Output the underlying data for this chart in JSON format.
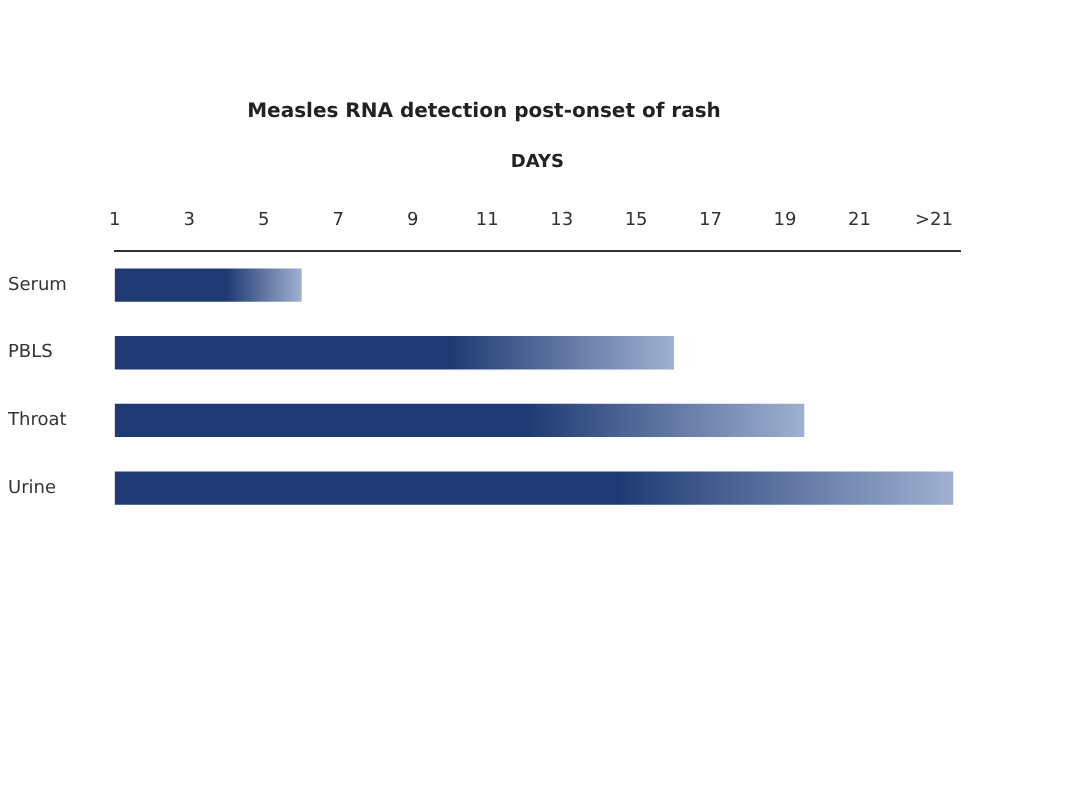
{
  "chart_data": {
    "type": "bar",
    "orientation": "horizontal",
    "title": "Measles RNA detection post-onset of rash",
    "xlabel": "DAYS",
    "categories": [
      "Serum",
      "PBLS",
      "Throat",
      "Urine"
    ],
    "values": [
      6,
      16,
      19.5,
      23.5
    ],
    "color": "#1f3a73",
    "xlim": [
      1,
      23.7
    ],
    "xticks": [
      1,
      3,
      5,
      7,
      9,
      11,
      13,
      15,
      17,
      19,
      21,
      {
        "value": 23,
        "label": ">21"
      }
    ],
    "grid": false,
    "legend": false
  }
}
